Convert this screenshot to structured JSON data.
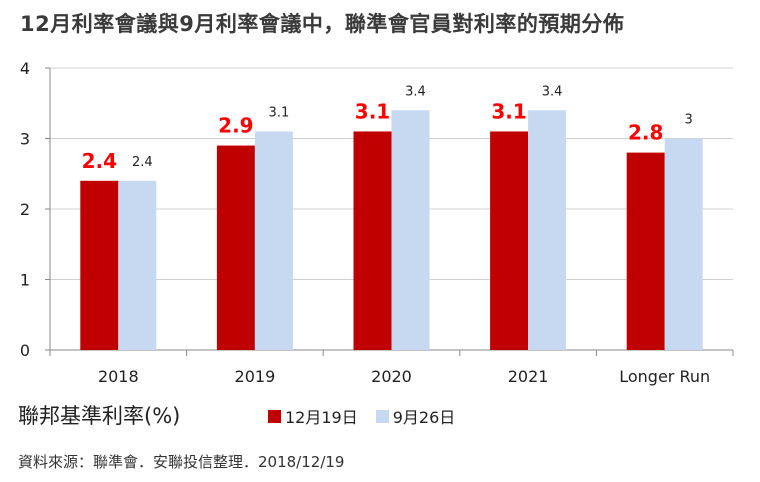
{
  "title": "12月利率會議與9月利率會議中，聯準會官員對利率的預期分佈",
  "ylabel": "聯邦基準利率(%)",
  "source": "資料來源：聯準會．安聯投信整理．2018/12/19",
  "colors": {
    "series1": "#c00000",
    "series2": "#c6d9f1",
    "series1_label": "#ff0000",
    "axis": "#888888",
    "grid": "#d0d0d0"
  },
  "chart_data": {
    "type": "bar",
    "categories": [
      "2018",
      "2019",
      "2020",
      "2021",
      "Longer Run"
    ],
    "series": [
      {
        "name": "12月19日",
        "values": [
          2.4,
          2.9,
          3.1,
          3.1,
          2.8
        ]
      },
      {
        "name": "9月26日",
        "values": [
          2.4,
          3.1,
          3.4,
          3.4,
          3
        ]
      }
    ],
    "yticks": [
      "0",
      "1",
      "2",
      "3",
      "4"
    ],
    "ylim": [
      0,
      4
    ],
    "grid": true,
    "legend_position": "bottom"
  }
}
